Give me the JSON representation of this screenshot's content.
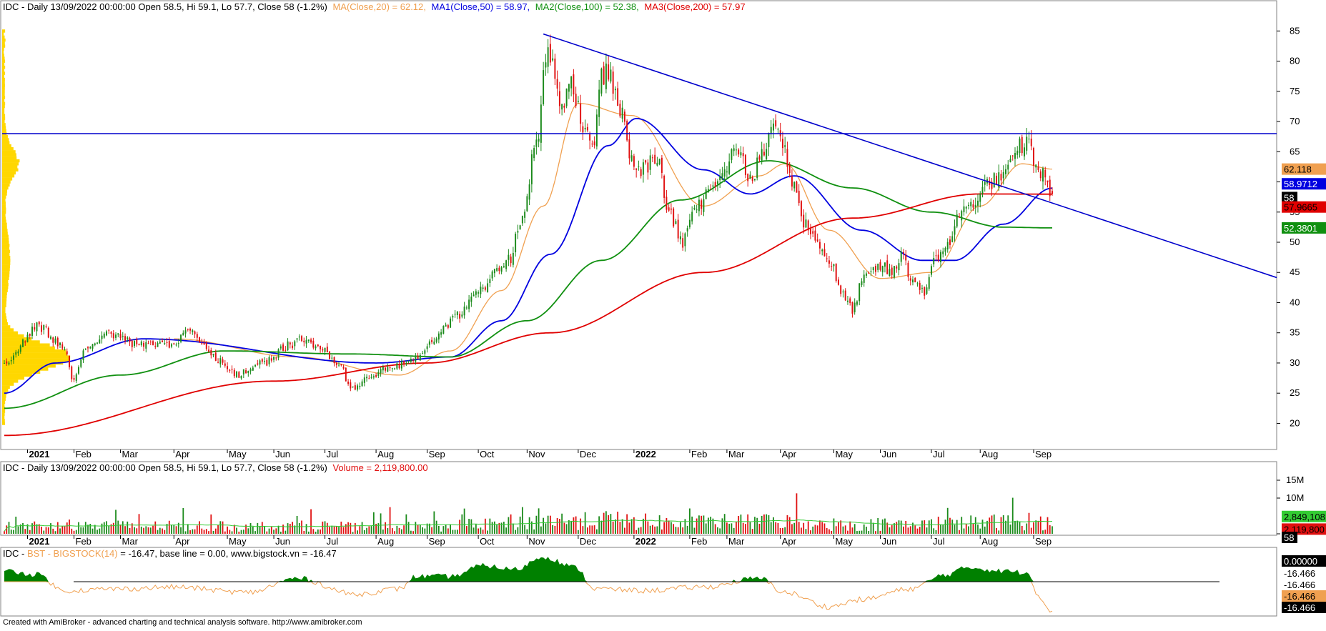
{
  "app": {
    "footer": "Created with AmiBroker - advanced charting and technical analysis software. http://www.amibroker.com"
  },
  "colors": {
    "up": "#1b8a1b",
    "down": "#e01010",
    "ma20": "#f0a050",
    "ma50": "#0000e0",
    "ma100": "#109010",
    "ma200": "#e00000",
    "trend": "#0000cc",
    "profile": "#ffd700",
    "volume_ma": "#33cc33",
    "bst_fill": "#008000",
    "bst_line": "#f0a050"
  },
  "price_panel": {
    "header": {
      "prefix": "IDC - Daily 13/09/2022 00:00:00 Open 58.5, Hi 59.1, Lo 57.7, Close 58 (-1.2%)",
      "ma20": "MA(Close,20) = 62.12,",
      "ma50": "MA1(Close,50) = 58.97,",
      "ma100": "MA2(Close,100) = 52.38,",
      "ma200": "MA3(Close,200) = 57.97"
    },
    "y_ticks": [
      "85",
      "80",
      "75",
      "70",
      "65",
      "60",
      "55",
      "50",
      "45",
      "40",
      "35",
      "30",
      "25",
      "20"
    ],
    "badges": {
      "ma20": "62.118",
      "ma50": "58.9712",
      "close": "58",
      "ma200": "57.9665",
      "ma100": "52.3801"
    }
  },
  "x_axis": {
    "labels": [
      {
        "text": "2021",
        "bold": true
      },
      {
        "text": "Feb",
        "bold": false
      },
      {
        "text": "Mar",
        "bold": false
      },
      {
        "text": "Apr",
        "bold": false
      },
      {
        "text": "May",
        "bold": false
      },
      {
        "text": "Jun",
        "bold": false
      },
      {
        "text": "Jul",
        "bold": false
      },
      {
        "text": "Aug",
        "bold": false
      },
      {
        "text": "Sep",
        "bold": false
      },
      {
        "text": "Oct",
        "bold": false
      },
      {
        "text": "Nov",
        "bold": false
      },
      {
        "text": "Dec",
        "bold": false
      },
      {
        "text": "2022",
        "bold": true
      },
      {
        "text": "Feb",
        "bold": false
      },
      {
        "text": "Mar",
        "bold": false
      },
      {
        "text": "Apr",
        "bold": false
      },
      {
        "text": "May",
        "bold": false
      },
      {
        "text": "Jun",
        "bold": false
      },
      {
        "text": "Jul",
        "bold": false
      },
      {
        "text": "Aug",
        "bold": false
      },
      {
        "text": "Sep",
        "bold": false
      }
    ]
  },
  "volume_panel": {
    "header": {
      "prefix": "IDC - Daily 13/09/2022 00:00:00 Open 58.5, Hi 59.1, Lo 57.7, Close 58 (-1.2%)",
      "volume": "Volume = 2,119,800.00"
    },
    "y_ticks": [
      "15M",
      "10M",
      "0"
    ],
    "badges": {
      "vol_ma": "2,849,108",
      "volume": "2,119,800",
      "close": "58"
    }
  },
  "bst_panel": {
    "header": {
      "prefix": "IDC - ",
      "bst": "BST - BIGSTOCK(14)",
      "rest": " = -16.47, base line = 0.00, www.bigstock.vn = -16.47"
    },
    "badges": {
      "zero": "0.00000",
      "v1": "-16.466",
      "v2": "-16.466",
      "v3": "-16.466",
      "v4": "-16.466"
    }
  },
  "chart_data": {
    "type": "candlestick",
    "ticker": "IDC",
    "period": "Daily",
    "last_bar": {
      "date": "13/09/2022",
      "open": 58.5,
      "high": 59.1,
      "low": 57.7,
      "close": 58,
      "change_pct": -1.2,
      "volume": 2119800
    },
    "y_range": [
      16.5,
      88
    ],
    "volume_range": [
      0,
      17000000
    ],
    "close_anchors": [
      {
        "date": "2020-12-21",
        "close": 30
      },
      {
        "date": "2021-01-10",
        "close": 36
      },
      {
        "date": "2021-01-25",
        "close": 33
      },
      {
        "date": "2021-02-01",
        "close": 27
      },
      {
        "date": "2021-02-08",
        "close": 33
      },
      {
        "date": "2021-02-20",
        "close": 35
      },
      {
        "date": "2021-03-10",
        "close": 33
      },
      {
        "date": "2021-03-31",
        "close": 33
      },
      {
        "date": "2021-04-10",
        "close": 35
      },
      {
        "date": "2021-04-25",
        "close": 31
      },
      {
        "date": "2021-05-10",
        "close": 28
      },
      {
        "date": "2021-05-25",
        "close": 30
      },
      {
        "date": "2021-06-10",
        "close": 33
      },
      {
        "date": "2021-06-20",
        "close": 34
      },
      {
        "date": "2021-06-30",
        "close": 32
      },
      {
        "date": "2021-07-08",
        "close": 30
      },
      {
        "date": "2021-07-18",
        "close": 26
      },
      {
        "date": "2021-07-28",
        "close": 28
      },
      {
        "date": "2021-08-10",
        "close": 29
      },
      {
        "date": "2021-08-25",
        "close": 31
      },
      {
        "date": "2021-09-05",
        "close": 34
      },
      {
        "date": "2021-09-20",
        "close": 38
      },
      {
        "date": "2021-10-05",
        "close": 43
      },
      {
        "date": "2021-10-20",
        "close": 47
      },
      {
        "date": "2021-10-28",
        "close": 54
      },
      {
        "date": "2021-11-05",
        "close": 67
      },
      {
        "date": "2021-11-12",
        "close": 82
      },
      {
        "date": "2021-11-16",
        "close": 79
      },
      {
        "date": "2021-11-20",
        "close": 72
      },
      {
        "date": "2021-11-26",
        "close": 76
      },
      {
        "date": "2021-12-05",
        "close": 69
      },
      {
        "date": "2021-12-10",
        "close": 66
      },
      {
        "date": "2021-12-14",
        "close": 77
      },
      {
        "date": "2021-12-20",
        "close": 78
      },
      {
        "date": "2021-12-26",
        "close": 72
      },
      {
        "date": "2022-01-03",
        "close": 63
      },
      {
        "date": "2022-01-10",
        "close": 62
      },
      {
        "date": "2022-01-18",
        "close": 64
      },
      {
        "date": "2022-01-25",
        "close": 55
      },
      {
        "date": "2022-02-02",
        "close": 50
      },
      {
        "date": "2022-02-10",
        "close": 56
      },
      {
        "date": "2022-02-20",
        "close": 60
      },
      {
        "date": "2022-03-01",
        "close": 63
      },
      {
        "date": "2022-03-08",
        "close": 66
      },
      {
        "date": "2022-03-15",
        "close": 60
      },
      {
        "date": "2022-03-22",
        "close": 64
      },
      {
        "date": "2022-03-29",
        "close": 70
      },
      {
        "date": "2022-04-04",
        "close": 66
      },
      {
        "date": "2022-04-10",
        "close": 59
      },
      {
        "date": "2022-04-16",
        "close": 53
      },
      {
        "date": "2022-04-24",
        "close": 50
      },
      {
        "date": "2022-05-01",
        "close": 47
      },
      {
        "date": "2022-05-10",
        "close": 41
      },
      {
        "date": "2022-05-16",
        "close": 39
      },
      {
        "date": "2022-05-23",
        "close": 44
      },
      {
        "date": "2022-06-01",
        "close": 46
      },
      {
        "date": "2022-06-08",
        "close": 45
      },
      {
        "date": "2022-06-15",
        "close": 48
      },
      {
        "date": "2022-06-20",
        "close": 44
      },
      {
        "date": "2022-06-28",
        "close": 42
      },
      {
        "date": "2022-07-05",
        "close": 47
      },
      {
        "date": "2022-07-12",
        "close": 50
      },
      {
        "date": "2022-07-20",
        "close": 55
      },
      {
        "date": "2022-07-28",
        "close": 57
      },
      {
        "date": "2022-08-05",
        "close": 60
      },
      {
        "date": "2022-08-15",
        "close": 61
      },
      {
        "date": "2022-08-25",
        "close": 66
      },
      {
        "date": "2022-08-29",
        "close": 67
      },
      {
        "date": "2022-09-02",
        "close": 63
      },
      {
        "date": "2022-09-07",
        "close": 61
      },
      {
        "date": "2022-09-10",
        "close": 58.6
      },
      {
        "date": "2022-09-13",
        "close": 58
      }
    ],
    "ma_anchors": {
      "MA(Close,20)": [
        {
          "date": "2021-04-01",
          "value": 34
        },
        {
          "date": "2021-06-15",
          "value": 31
        },
        {
          "date": "2021-08-15",
          "value": 28
        },
        {
          "date": "2021-09-15",
          "value": 32
        },
        {
          "date": "2021-10-15",
          "value": 42
        },
        {
          "date": "2021-11-10",
          "value": 56
        },
        {
          "date": "2021-12-01",
          "value": 73
        },
        {
          "date": "2022-01-01",
          "value": 71
        },
        {
          "date": "2022-02-15",
          "value": 56
        },
        {
          "date": "2022-03-20",
          "value": 61
        },
        {
          "date": "2022-04-05",
          "value": 63
        },
        {
          "date": "2022-05-01",
          "value": 52
        },
        {
          "date": "2022-06-01",
          "value": 44
        },
        {
          "date": "2022-07-01",
          "value": 45
        },
        {
          "date": "2022-08-01",
          "value": 56
        },
        {
          "date": "2022-08-25",
          "value": 63
        },
        {
          "date": "2022-09-13",
          "value": 62.12
        }
      ],
      "MA1(Close,50)": [
        {
          "date": "2020-12-21",
          "value": 25
        },
        {
          "date": "2021-01-20",
          "value": 30
        },
        {
          "date": "2021-03-15",
          "value": 34
        },
        {
          "date": "2021-08-01",
          "value": 30
        },
        {
          "date": "2021-09-15",
          "value": 31
        },
        {
          "date": "2021-10-15",
          "value": 37
        },
        {
          "date": "2021-11-15",
          "value": 48
        },
        {
          "date": "2021-12-20",
          "value": 66
        },
        {
          "date": "2022-01-05",
          "value": 70.5
        },
        {
          "date": "2022-02-15",
          "value": 62
        },
        {
          "date": "2022-03-15",
          "value": 58
        },
        {
          "date": "2022-04-10",
          "value": 61
        },
        {
          "date": "2022-05-20",
          "value": 52
        },
        {
          "date": "2022-06-25",
          "value": 47
        },
        {
          "date": "2022-07-15",
          "value": 47
        },
        {
          "date": "2022-08-15",
          "value": 53
        },
        {
          "date": "2022-09-13",
          "value": 58.97
        }
      ],
      "MA2(Close,100)": [
        {
          "date": "2020-12-21",
          "value": 22.5
        },
        {
          "date": "2021-03-01",
          "value": 28
        },
        {
          "date": "2021-05-01",
          "value": 32
        },
        {
          "date": "2021-07-15",
          "value": 31.5
        },
        {
          "date": "2021-09-15",
          "value": 31
        },
        {
          "date": "2021-11-01",
          "value": 37
        },
        {
          "date": "2021-12-15",
          "value": 47
        },
        {
          "date": "2022-02-01",
          "value": 57
        },
        {
          "date": "2022-03-25",
          "value": 63.5
        },
        {
          "date": "2022-05-15",
          "value": 59
        },
        {
          "date": "2022-07-01",
          "value": 55
        },
        {
          "date": "2022-08-15",
          "value": 52.5
        },
        {
          "date": "2022-09-13",
          "value": 52.38
        }
      ],
      "MA3(Close,200)": [
        {
          "date": "2020-12-21",
          "value": 18
        },
        {
          "date": "2021-06-01",
          "value": 27
        },
        {
          "date": "2021-09-01",
          "value": 30
        },
        {
          "date": "2021-11-15",
          "value": 35
        },
        {
          "date": "2022-02-15",
          "value": 45
        },
        {
          "date": "2022-05-15",
          "value": 54
        },
        {
          "date": "2022-08-01",
          "value": 58
        },
        {
          "date": "2022-09-13",
          "value": 57.97
        }
      ]
    },
    "horizontal_line": 68,
    "trendline": {
      "from": {
        "date": "2021-11-10",
        "value": 84.5
      },
      "to": {
        "date": "2022-09-13",
        "value": 56.5
      }
    },
    "volume_profile_note": "horizontal volume histogram on left of price panel",
    "bst_anchors": [
      {
        "date": "2020-12-21",
        "value": 6
      },
      {
        "date": "2021-01-10",
        "value": 4
      },
      {
        "date": "2021-01-25",
        "value": -5
      },
      {
        "date": "2021-03-01",
        "value": -4
      },
      {
        "date": "2021-04-01",
        "value": -3
      },
      {
        "date": "2021-05-15",
        "value": -6
      },
      {
        "date": "2021-06-15",
        "value": 2
      },
      {
        "date": "2021-07-20",
        "value": -7
      },
      {
        "date": "2021-08-15",
        "value": -4
      },
      {
        "date": "2021-08-25",
        "value": 3
      },
      {
        "date": "2021-09-15",
        "value": 3
      },
      {
        "date": "2021-10-05",
        "value": 9
      },
      {
        "date": "2021-10-25",
        "value": 7
      },
      {
        "date": "2021-11-10",
        "value": 14
      },
      {
        "date": "2021-11-30",
        "value": 8
      },
      {
        "date": "2021-12-10",
        "value": -4
      },
      {
        "date": "2022-01-10",
        "value": -5
      },
      {
        "date": "2022-02-15",
        "value": -3
      },
      {
        "date": "2022-03-20",
        "value": 2
      },
      {
        "date": "2022-04-05",
        "value": -6
      },
      {
        "date": "2022-05-01",
        "value": -14
      },
      {
        "date": "2022-05-20",
        "value": -10
      },
      {
        "date": "2022-06-20",
        "value": -4
      },
      {
        "date": "2022-07-10",
        "value": 4
      },
      {
        "date": "2022-07-25",
        "value": 8
      },
      {
        "date": "2022-08-15",
        "value": 6
      },
      {
        "date": "2022-08-30",
        "value": 5
      },
      {
        "date": "2022-09-05",
        "value": -8
      },
      {
        "date": "2022-09-13",
        "value": -16.47
      }
    ]
  }
}
